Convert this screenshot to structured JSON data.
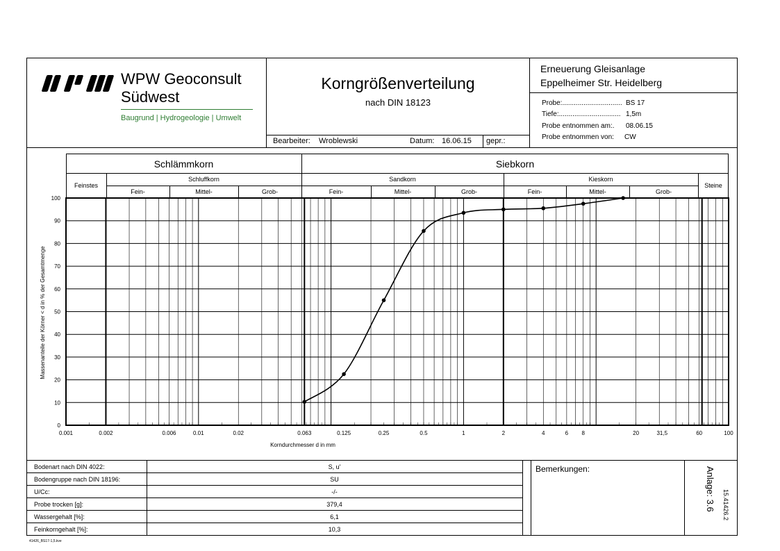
{
  "company": {
    "name_line1": "WPW Geoconsult",
    "name_line2": "Südwest",
    "tagline": "Baugrund | Hydrogeologie | Umwelt"
  },
  "title": {
    "main": "Korngrößenverteilung",
    "sub": "nach DIN 18123"
  },
  "project": {
    "line1": "Erneuerung Gleisanlage",
    "line2": "Eppelheimer Str. Heidelberg"
  },
  "sample": {
    "probe_label": "Probe:...............................",
    "probe_value": "BS 17",
    "tiefe_label": "Tiefe:................................",
    "tiefe_value": "1,5m",
    "entnommen_am_label": "Probe entnommen am:.",
    "entnommen_am_value": "08.06.15",
    "entnommen_von_label": "Probe entnommen von:",
    "entnommen_von_value": "CW"
  },
  "meta": {
    "bearbeiter_label": "Bearbeiter:",
    "bearbeiter_value": "Wroblewski",
    "datum_label": "Datum:",
    "datum_value": "16.06.15",
    "gepr_label": "gepr.:"
  },
  "categories": {
    "schlaemmkorn": "Schlämmkorn",
    "siebkorn": "Siebkorn",
    "feinstes": "Feinstes",
    "schluffkorn": "Schluffkorn",
    "sandkorn": "Sandkorn",
    "kieskorn": "Kieskorn",
    "steine": "Steine",
    "fein": "Fein-",
    "mittel": "Mittel-",
    "grob": "Grob-"
  },
  "chart_data": {
    "type": "line",
    "x_scale": "log",
    "xlabel": "Korndurchmesser d in mm",
    "ylabel": "Massenanteile der Körner < d in % der Gesamtmenge",
    "xlim": [
      0.001,
      100
    ],
    "ylim": [
      0,
      100
    ],
    "x_ticks": [
      0.001,
      0.002,
      0.006,
      0.01,
      0.02,
      0.063,
      0.125,
      0.25,
      0.5,
      1,
      2,
      4,
      6,
      8,
      20,
      31.5,
      60,
      100
    ],
    "x_tick_labels": [
      "0.001",
      "0.002",
      "0.006",
      "0.01",
      "0.02",
      "0.063",
      "0.125",
      "0.25",
      "0.5",
      "1",
      "2",
      "4",
      "6",
      "8",
      "20",
      "31,5",
      "60",
      "100"
    ],
    "y_ticks": [
      0,
      10,
      20,
      30,
      40,
      50,
      60,
      70,
      80,
      90,
      100
    ],
    "grid": true,
    "series": [
      {
        "x": [
          0.063,
          0.125,
          0.25,
          0.5,
          1,
          2,
          4,
          8,
          16
        ],
        "y": [
          10.3,
          22.5,
          55,
          85.5,
          93.5,
          95,
          95.5,
          97.5,
          100
        ]
      }
    ]
  },
  "results": {
    "rows": [
      {
        "label": "Bodenart nach DIN 4022:",
        "value": "S, u'"
      },
      {
        "label": "Bodengruppe nach DIN 18196:",
        "value": "SU"
      },
      {
        "label": "U/Cc:",
        "value": "-/-"
      },
      {
        "label": "Probe trocken [g]:",
        "value": "379,4"
      },
      {
        "label": "Wassergehalt [%]:",
        "value": "6,1"
      },
      {
        "label": "Feinkorngehalt [%]:",
        "value": "10,3"
      }
    ],
    "bemerkungen_label": "Bemerkungen:",
    "anlage": "Anlage: 3.6",
    "project_number": "15.41426.2"
  },
  "footer_file": "41426_BS17-1,5.kve"
}
